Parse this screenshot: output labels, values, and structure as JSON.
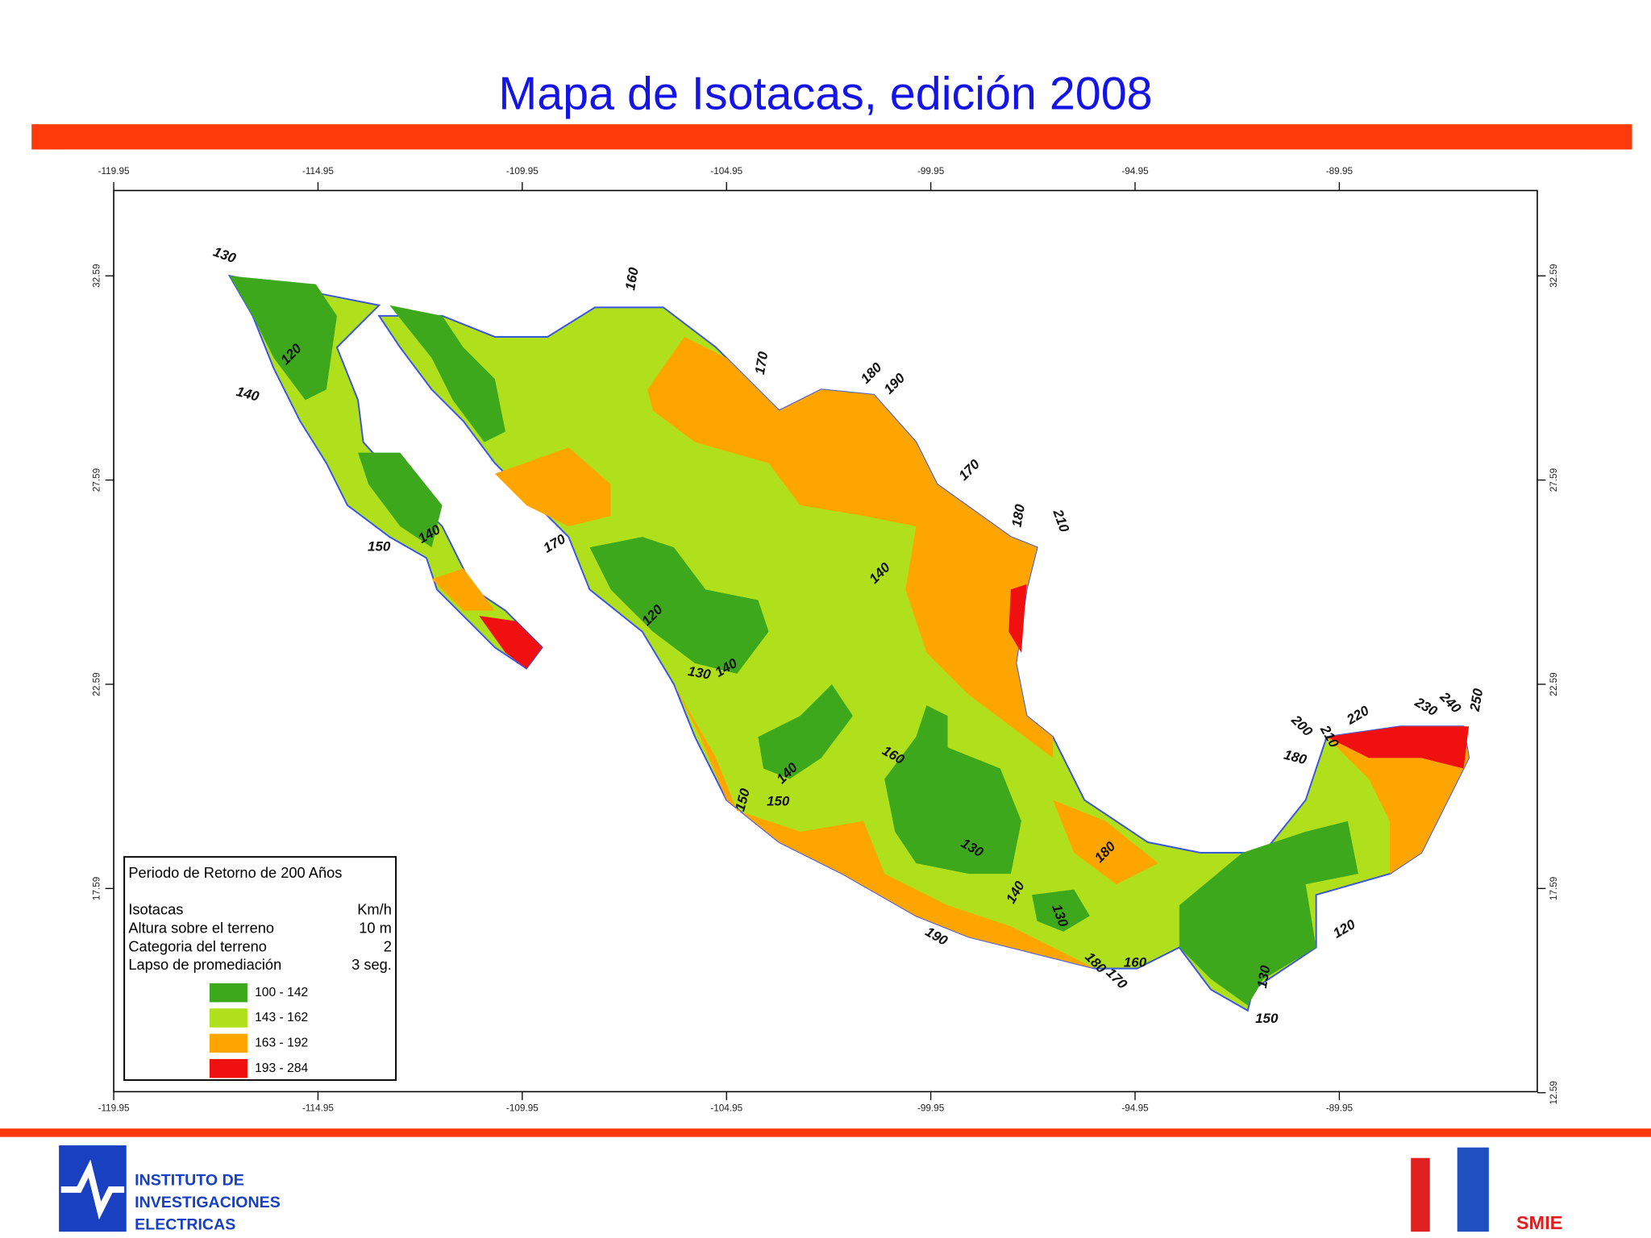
{
  "title": "Mapa de Isotacas, edición 2008",
  "map": {
    "lon_ticks": [
      -119.95,
      -114.95,
      -109.95,
      -104.95,
      -99.95,
      -94.95,
      -89.95
    ],
    "lat_ticks": [
      32.59,
      27.59,
      22.59,
      17.59,
      12.59
    ],
    "contour_labels": [
      130,
      120,
      140,
      160,
      170,
      180,
      190,
      170,
      180,
      210,
      150,
      140,
      170,
      140,
      120,
      130,
      140,
      160,
      140,
      150,
      150,
      130,
      180,
      140,
      130,
      190,
      160,
      170,
      180,
      200,
      210,
      220,
      230,
      240,
      250,
      180,
      120,
      130,
      150
    ]
  },
  "legend": {
    "title": "Periodo de Retorno de 200 Años",
    "rows": [
      [
        "Isotacas",
        "Km/h"
      ],
      [
        "Altura sobre el terreno",
        "10 m"
      ],
      [
        "Categoria del terreno",
        "2"
      ],
      [
        "Lapso de promediación",
        "3 seg."
      ]
    ],
    "classes": [
      {
        "label": "100 - 142",
        "color": "#3da81c"
      },
      {
        "label": "143 - 162",
        "color": "#b0e01c"
      },
      {
        "label": "163 - 192",
        "color": "#ffa500"
      },
      {
        "label": "193 - 284",
        "color": "#f01010"
      }
    ]
  },
  "logos": {
    "left": [
      "INSTITUTO DE",
      "INVESTIGACIONES",
      "ELECTRICAS"
    ],
    "right": "SMIE"
  }
}
